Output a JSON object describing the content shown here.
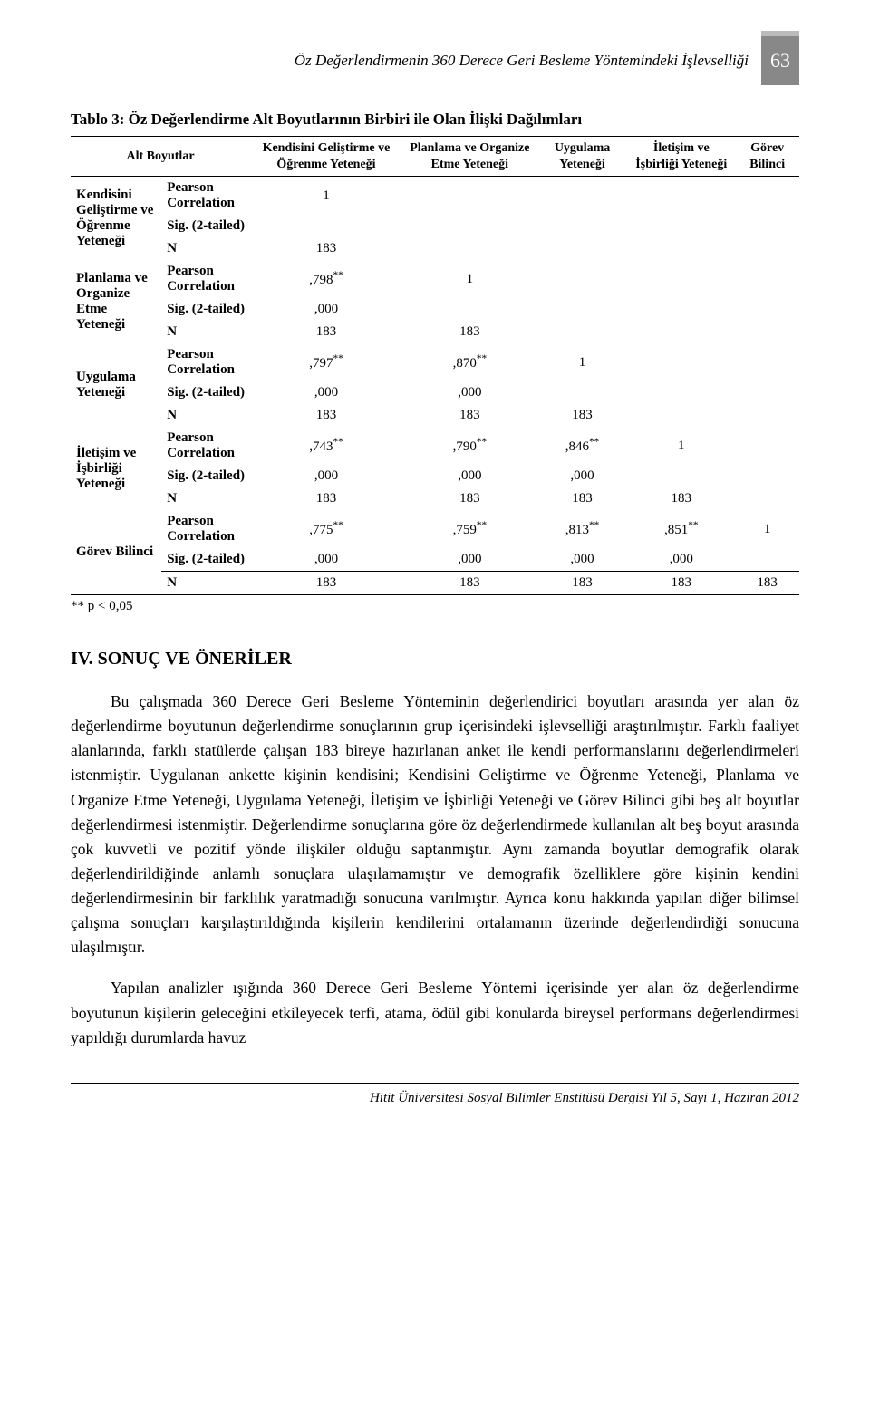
{
  "runningHead": "Öz Değerlendirmenin 360 Derece Geri Besleme Yöntemindeki İşlevselliği",
  "pageNumber": "63",
  "table": {
    "caption": "Tablo 3: Öz Değerlendirme Alt Boyutlarının Birbiri ile Olan İlişki Dağılımları",
    "colHeaders": {
      "alt": "Alt Boyutlar",
      "c1": "Kendisini Geliştirme ve Öğrenme Yeteneği",
      "c2": "Planlama ve Organize Etme Yeteneği",
      "c3": "Uygulama Yeteneği",
      "c4": "İletişim ve İşbirliği Yeteneği",
      "c5": "Görev Bilinci"
    },
    "statLabels": {
      "pearson": "Pearson Correlation",
      "sig": "Sig. (2-tailed)",
      "n": "N"
    },
    "footnote": "** p < 0,05",
    "blocks": [
      {
        "label": "Kendisini Geliştirme ve Öğrenme Yeteneği",
        "pearson": [
          "1",
          "",
          "",
          "",
          ""
        ],
        "sig": [
          "",
          "",
          "",
          "",
          ""
        ],
        "n": [
          "183",
          "",
          "",
          "",
          ""
        ]
      },
      {
        "label": "Planlama ve Organize Etme Yeteneği",
        "pearson": [
          ",798**",
          "1",
          "",
          "",
          ""
        ],
        "sig": [
          ",000",
          "",
          "",
          "",
          ""
        ],
        "n": [
          "183",
          "183",
          "",
          "",
          ""
        ]
      },
      {
        "label": "Uygulama Yeteneği",
        "pearson": [
          ",797**",
          ",870**",
          "1",
          "",
          ""
        ],
        "sig": [
          ",000",
          ",000",
          "",
          "",
          ""
        ],
        "n": [
          "183",
          "183",
          "183",
          "",
          ""
        ]
      },
      {
        "label": "İletişim ve İşbirliği Yeteneği",
        "pearson": [
          ",743**",
          ",790**",
          ",846**",
          "1",
          ""
        ],
        "sig": [
          ",000",
          ",000",
          ",000",
          "",
          ""
        ],
        "n": [
          "183",
          "183",
          "183",
          "183",
          ""
        ]
      },
      {
        "label": "Görev Bilinci",
        "pearson": [
          ",775**",
          ",759**",
          ",813**",
          ",851**",
          "1"
        ],
        "sig": [
          ",000",
          ",000",
          ",000",
          ",000",
          ""
        ],
        "n": [
          "183",
          "183",
          "183",
          "183",
          "183"
        ]
      }
    ]
  },
  "sectionHeading": "IV. SONUÇ VE ÖNERİLER",
  "para1": "Bu çalışmada 360 Derece Geri Besleme Yönteminin değerlendirici boyutları arasında yer alan öz değerlendirme boyutunun değerlendirme sonuçlarının grup içerisindeki işlevselliği araştırılmıştır. Farklı faaliyet alanlarında, farklı statülerde çalışan 183 bireye hazırlanan anket ile kendi performanslarını değerlendirmeleri istenmiştir. Uygulanan ankette kişinin kendisini; Kendisini Geliştirme ve Öğrenme Yeteneği, Planlama ve Organize Etme Yeteneği, Uygulama Yeteneği, İletişim ve İşbirliği Yeteneği ve Görev Bilinci gibi beş alt boyutlar değerlendirmesi istenmiştir. Değerlendirme sonuçlarına göre öz değerlendirmede kullanılan alt beş boyut arasında çok kuvvetli ve pozitif yönde ilişkiler olduğu saptanmıştır. Aynı zamanda boyutlar demografik olarak değerlendirildiğinde anlamlı sonuçlara ulaşılamamıştır ve demografik özelliklere göre kişinin kendini değerlendirmesinin bir farklılık yaratmadığı sonucuna varılmıştır. Ayrıca konu hakkında yapılan diğer bilimsel çalışma sonuçları karşılaştırıldığında kişilerin kendilerini ortalamanın üzerinde değerlendirdiği sonucuna ulaşılmıştır.",
  "para2": "Yapılan analizler ışığında 360 Derece Geri Besleme Yöntemi içerisinde yer alan öz değerlendirme boyutunun kişilerin geleceğini etkileyecek terfi, atama, ödül gibi konularda bireysel performans değerlendirmesi yapıldığı durumlarda havuz",
  "footer": "Hitit Üniversitesi Sosyal Bilimler Enstitüsü Dergisi Yıl 5, Sayı 1, Haziran 2012"
}
